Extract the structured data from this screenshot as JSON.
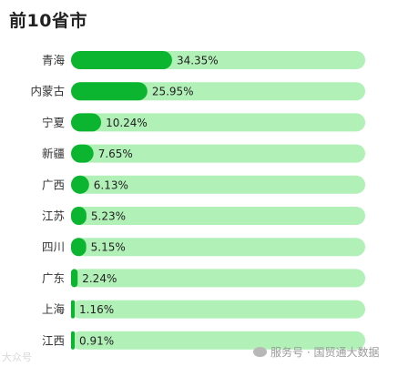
{
  "header": {
    "title": "前10省市"
  },
  "chart_data": {
    "type": "bar",
    "orientation": "horizontal",
    "title": "前10省市",
    "categories": [
      "青海",
      "内蒙古",
      "宁夏",
      "新疆",
      "广西",
      "江苏",
      "四川",
      "广东",
      "上海",
      "江西"
    ],
    "values": [
      34.35,
      25.95,
      10.24,
      7.65,
      6.13,
      5.23,
      5.15,
      2.24,
      1.16,
      0.91
    ],
    "value_labels": [
      "34.35%",
      "25.95%",
      "10.24%",
      "7.65%",
      "6.13%",
      "5.23%",
      "5.15%",
      "2.24%",
      "1.16%",
      "0.91%"
    ],
    "xlim": [
      0,
      100
    ],
    "unit": "%",
    "grid": false,
    "legend": "none",
    "colors": {
      "bar": "#0bb52f",
      "track": "#b1f0b7"
    }
  },
  "footer": {
    "left_watermark": "大众号",
    "right_text": "服务号 · 国贸通大数据",
    "icon": "wechat-icon"
  }
}
